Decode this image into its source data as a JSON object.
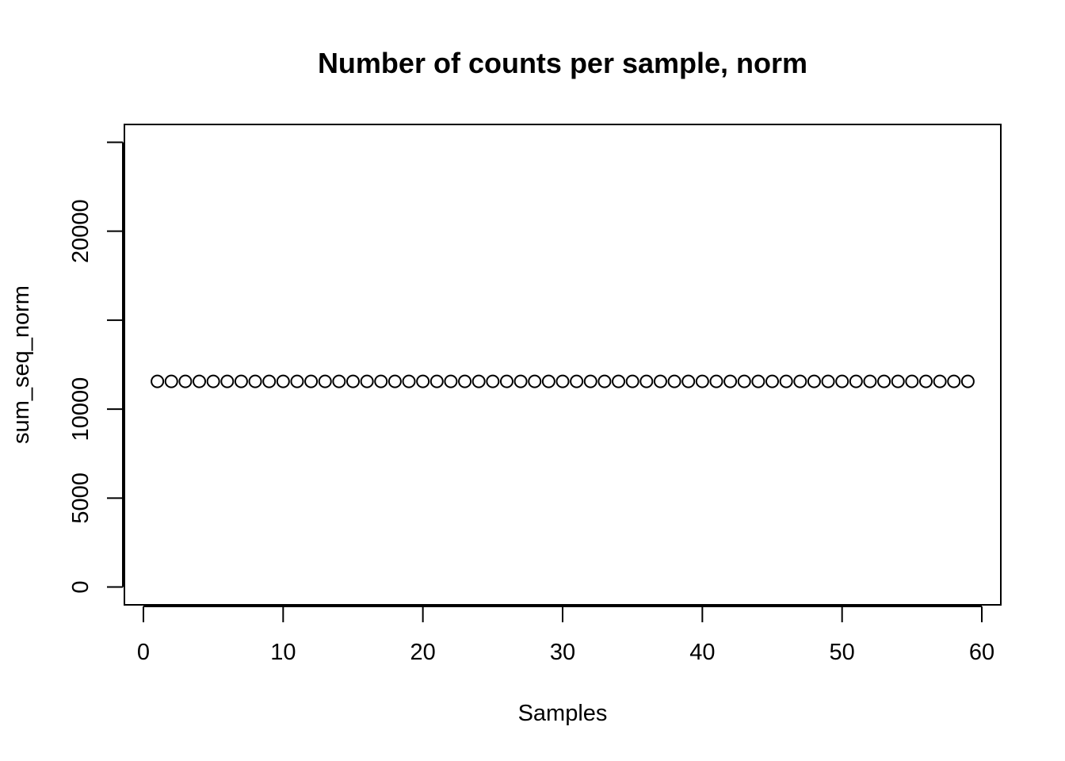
{
  "chart_data": {
    "type": "scatter",
    "title": "Number of counts per sample, norm",
    "xlabel": "Samples",
    "ylabel": "sum_seq_norm",
    "xlim": [
      -1.36,
      61.36
    ],
    "ylim": [
      -1000,
      26000
    ],
    "x_ticks": [
      0,
      10,
      20,
      30,
      40,
      50,
      60
    ],
    "x_tick_labels": [
      "0",
      "10",
      "20",
      "30",
      "40",
      "50",
      "60"
    ],
    "y_ticks": [
      0,
      5000,
      10000,
      15000,
      20000,
      25000
    ],
    "y_tick_labels": [
      "0",
      "5000",
      "10000",
      "",
      "20000",
      ""
    ],
    "grid": false,
    "marker": "open-circle",
    "series": [
      {
        "x": [
          1,
          2,
          3,
          4,
          5,
          6,
          7,
          8,
          9,
          10,
          11,
          12,
          13,
          14,
          15,
          16,
          17,
          18,
          19,
          20,
          21,
          22,
          23,
          24,
          25,
          26,
          27,
          28,
          29,
          30,
          31,
          32,
          33,
          34,
          35,
          36,
          37,
          38,
          39,
          40,
          41,
          42,
          43,
          44,
          45,
          46,
          47,
          48,
          49,
          50,
          51,
          52,
          53,
          54,
          55,
          56,
          57,
          58,
          59
        ],
        "y": [
          11560,
          11560,
          11560,
          11560,
          11560,
          11560,
          11560,
          11560,
          11560,
          11560,
          11560,
          11560,
          11560,
          11560,
          11560,
          11560,
          11560,
          11560,
          11560,
          11560,
          11560,
          11560,
          11560,
          11560,
          11560,
          11560,
          11560,
          11560,
          11560,
          11560,
          11560,
          11560,
          11560,
          11560,
          11560,
          11560,
          11560,
          11560,
          11560,
          11560,
          11560,
          11560,
          11560,
          11560,
          11560,
          11560,
          11560,
          11560,
          11560,
          11560,
          11560,
          11560,
          11560,
          11560,
          11560,
          11560,
          11560,
          11560,
          11560
        ]
      }
    ]
  }
}
